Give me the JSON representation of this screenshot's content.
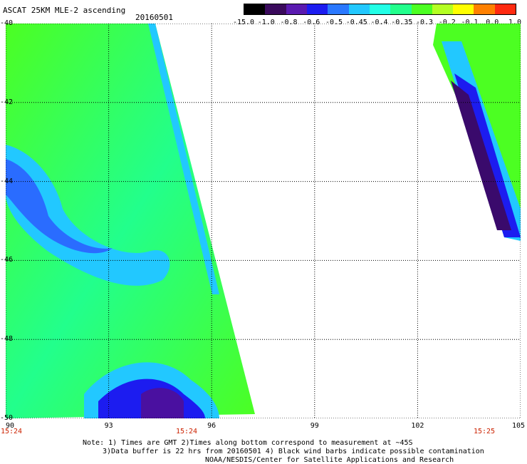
{
  "header": {
    "title": "ASCAT 25KM MLE-2 ascending",
    "date": "20160501"
  },
  "colorbar": {
    "labels": [
      "-15.0",
      "-1.0",
      "-0.8",
      "-0.6",
      "-0.5",
      "-0.45",
      "-0.4",
      "-0.35",
      "-0.3",
      "-0.2",
      "-0.1",
      "0.0",
      "1.0"
    ],
    "colors": [
      "#000000",
      "#3a0a5c",
      "#5a1ab0",
      "#1c1cf0",
      "#2a78ff",
      "#22c8ff",
      "#22ffe6",
      "#22ff8c",
      "#4cff22",
      "#b4ff22",
      "#ffff00",
      "#ff8000",
      "#ff2a10"
    ]
  },
  "map": {
    "y_ticks": [
      "-40",
      "-42",
      "-44",
      "-46",
      "-48",
      "-50"
    ],
    "x_ticks": [
      "90",
      "93",
      "96",
      "99",
      "102",
      "105"
    ],
    "times": [
      "15:24",
      "15:24",
      "15:25"
    ]
  },
  "notes": {
    "line1": "Note: 1) Times are GMT 2)Times along bottom correspond to measurement at ~45S",
    "line2": "3)Data buffer is 22 hrs from 20160501 4) Black wind barbs indicate possible contamination",
    "line3": "NOAA/NESDIS/Center for Satellite Applications and Research"
  }
}
